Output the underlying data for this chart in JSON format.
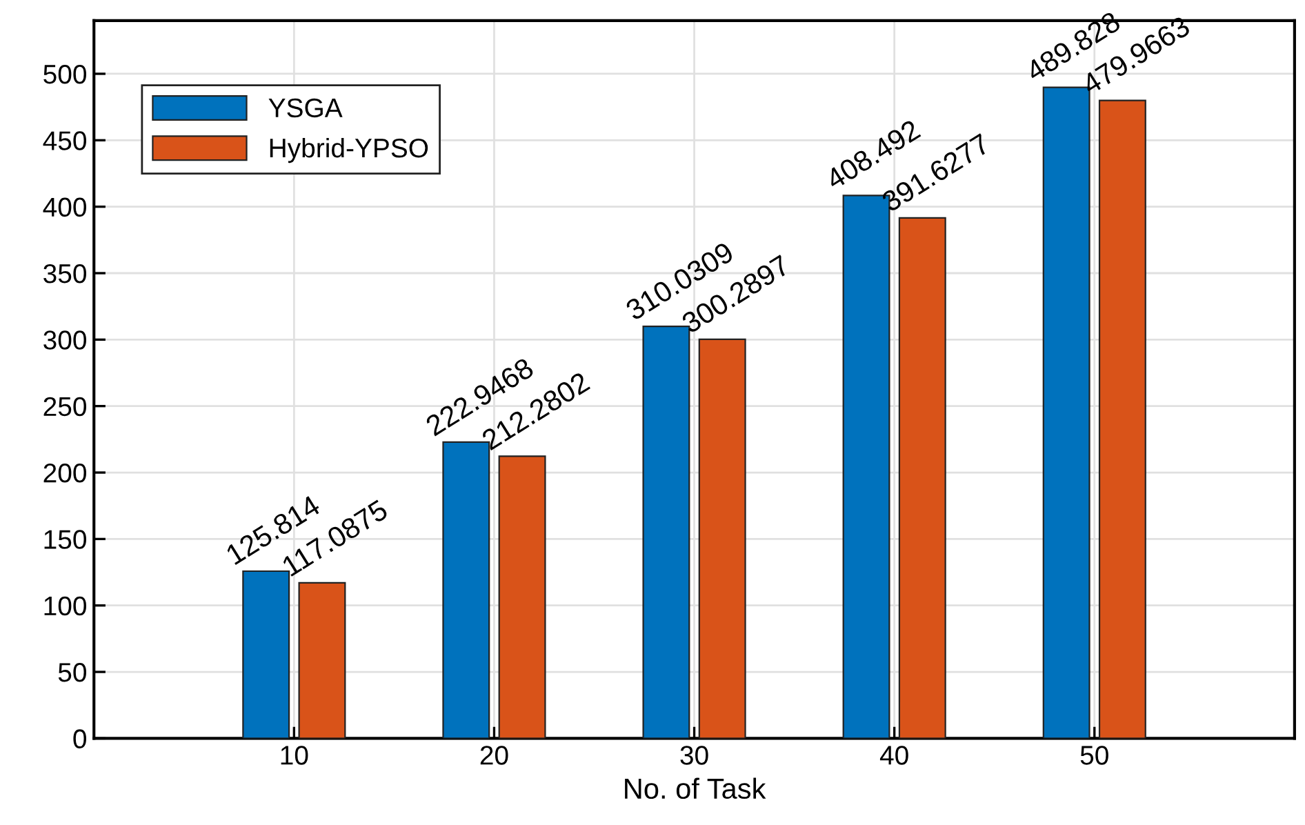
{
  "chart_data": {
    "type": "bar",
    "xlabel": "No. of Task",
    "x": [
      10,
      20,
      30,
      40,
      50
    ],
    "series": [
      {
        "name": "YSGA",
        "color": "#0072bd",
        "values": [
          125.814,
          222.9468,
          310.0309,
          408.492,
          489.828
        ]
      },
      {
        "name": "Hybrid-YPSO",
        "color": "#d95319",
        "values": [
          117.0875,
          212.2802,
          300.2897,
          391.6277,
          479.9663
        ]
      }
    ],
    "xlim": [
      0,
      60
    ],
    "xticks": [
      10,
      20,
      30,
      40,
      50
    ],
    "ylim": [
      0,
      540
    ],
    "yticks": [
      0,
      50,
      100,
      150,
      200,
      250,
      300,
      350,
      400,
      450,
      500
    ],
    "grid": true,
    "legend": "top left",
    "data_labels": true
  }
}
